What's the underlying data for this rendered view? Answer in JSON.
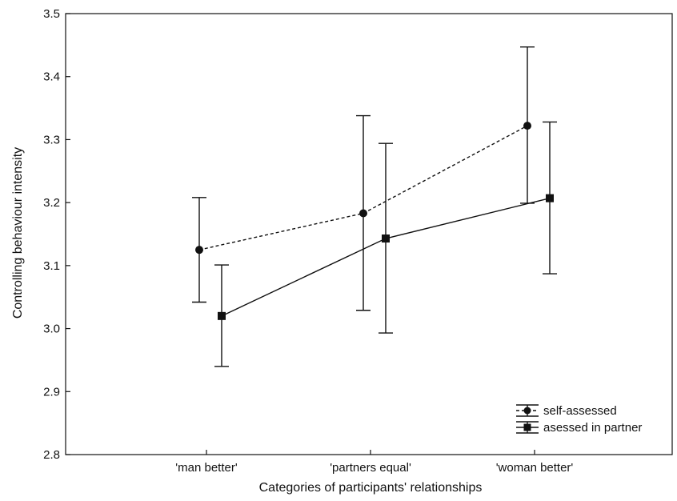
{
  "chart_data": {
    "type": "line",
    "title": "",
    "xlabel": "Categories of participants' relationships",
    "ylabel": "Controlling behaviour intensity",
    "categories": [
      "'man better'",
      "'partners equal'",
      "'woman better'"
    ],
    "ylim": [
      2.8,
      3.5
    ],
    "yticks": [
      "2.8",
      "2.9",
      "3.0",
      "3.1",
      "3.2",
      "3.3",
      "3.4",
      "3.5"
    ],
    "grid": false,
    "legend_position": "bottom-right",
    "error_bars": true,
    "series": [
      {
        "name": "self-assessed",
        "marker": "circle",
        "line_style": "dashed",
        "values": [
          3.125,
          3.183,
          3.322
        ],
        "error_low": [
          3.042,
          3.029,
          3.199
        ],
        "error_high": [
          3.208,
          3.338,
          3.447
        ]
      },
      {
        "name": "asessed in partner",
        "marker": "square",
        "line_style": "solid",
        "values": [
          3.02,
          3.143,
          3.207
        ],
        "error_low": [
          2.94,
          2.993,
          3.087
        ],
        "error_high": [
          3.101,
          3.294,
          3.328
        ]
      }
    ]
  }
}
